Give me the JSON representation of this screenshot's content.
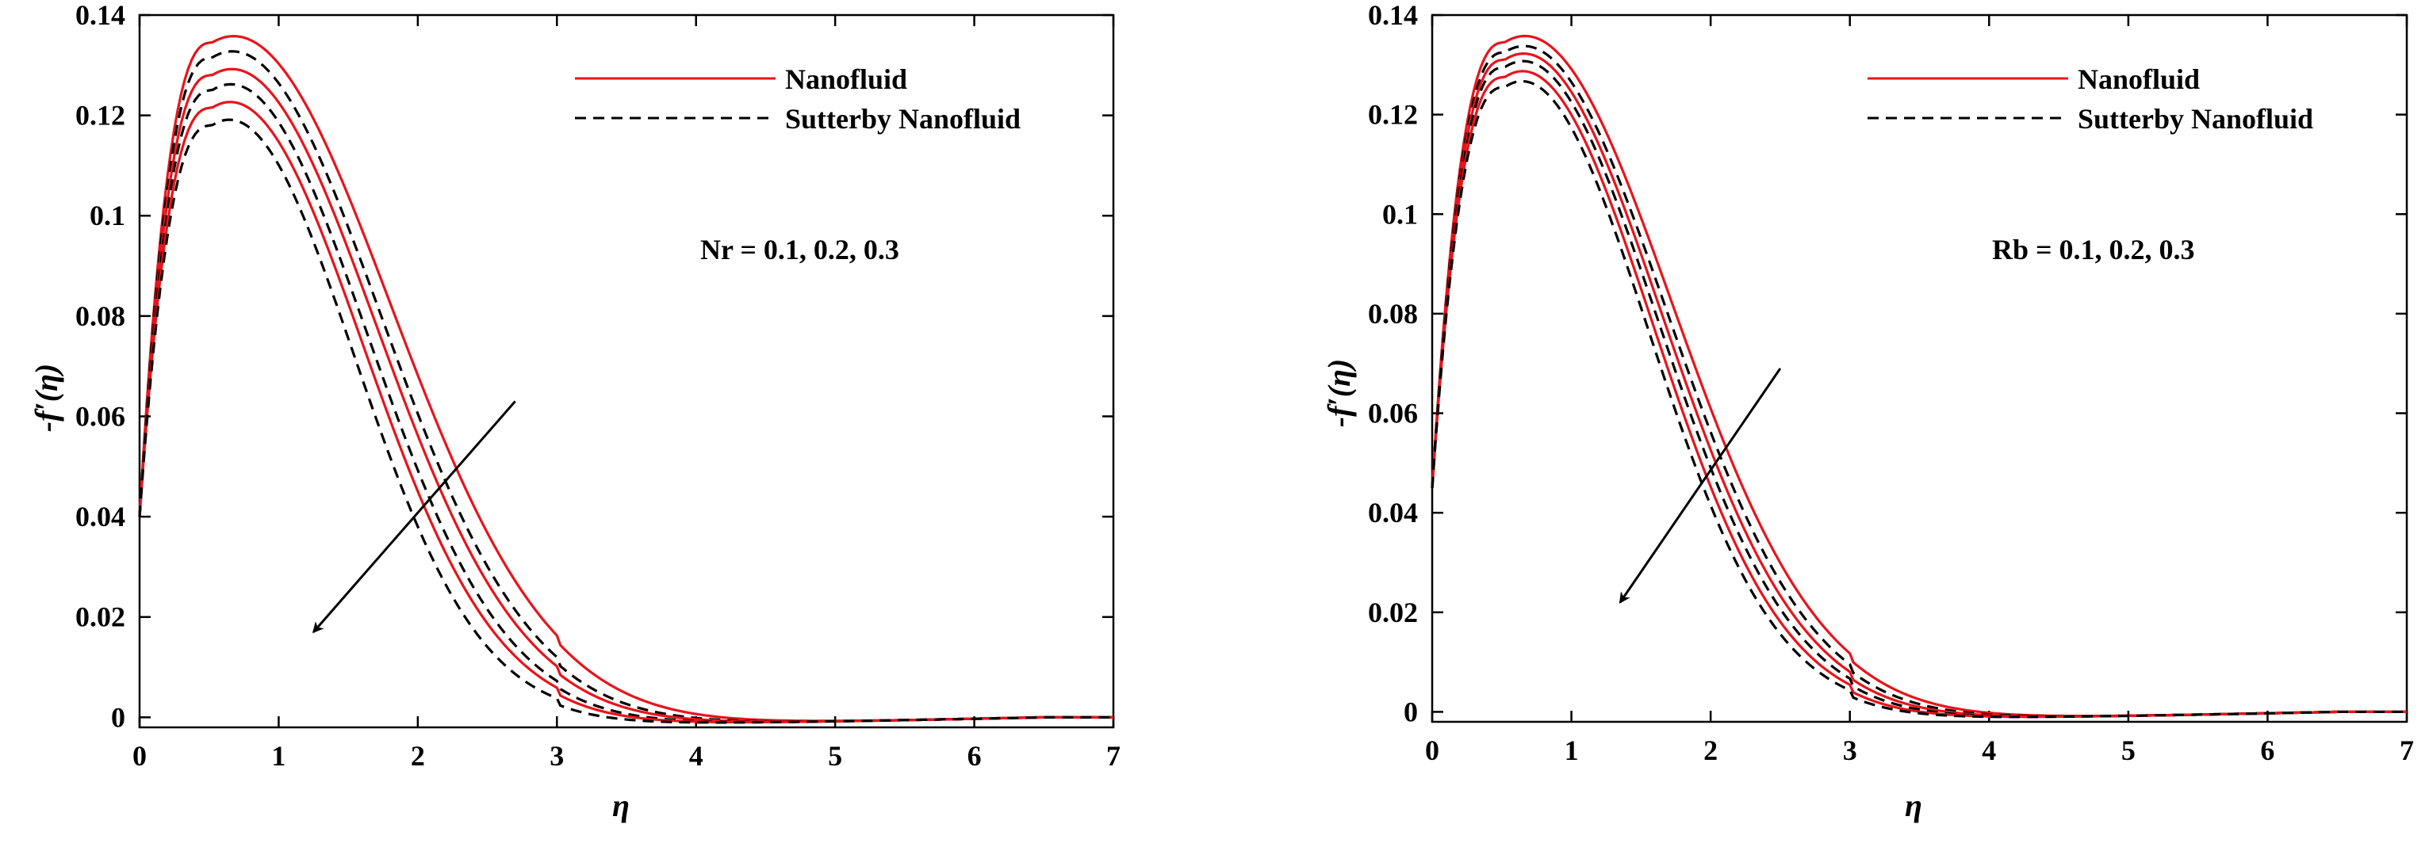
{
  "chart_data": [
    {
      "type": "line",
      "xlabel": "η",
      "ylabel": "-f′(η)",
      "xlim": [
        0,
        7
      ],
      "ylim": [
        -0.002,
        0.14
      ],
      "xticks": [
        "0",
        "1",
        "2",
        "3",
        "4",
        "5",
        "6",
        "7"
      ],
      "yticks": [
        "0",
        "0.02",
        "0.04",
        "0.06",
        "0.08",
        "0.1",
        "0.12",
        "0.14"
      ],
      "legend": [
        {
          "label": "Nanofluid",
          "color": "#e8141b",
          "style": "solid"
        },
        {
          "label": "Sutterby Nanofluid",
          "color": "#000000",
          "style": "dashed"
        }
      ],
      "annotation": "Nr = 0.1, 0.2, 0.3",
      "arrow": {
        "from": [
          2.7,
          0.063
        ],
        "to": [
          1.25,
          0.017
        ]
      },
      "series": [
        {
          "name": "Nanofluid, Nr = 0.1",
          "color": "#e8141b",
          "style": "solid",
          "peak_x": 0.52,
          "peak_y": 0.1345,
          "y0": 0.04,
          "decay": 1.22
        },
        {
          "name": "Sutterby Nanofluid, Nr = 0.1",
          "color": "#000000",
          "style": "dashed",
          "peak_x": 0.52,
          "peak_y": 0.1315,
          "y0": 0.04,
          "decay": 1.15
        },
        {
          "name": "Nanofluid, Nr = 0.2",
          "color": "#e8141b",
          "style": "solid",
          "peak_x": 0.52,
          "peak_y": 0.128,
          "y0": 0.04,
          "decay": 1.12
        },
        {
          "name": "Sutterby Nanofluid, Nr = 0.2",
          "color": "#000000",
          "style": "dashed",
          "peak_x": 0.52,
          "peak_y": 0.125,
          "y0": 0.04,
          "decay": 1.06
        },
        {
          "name": "Nanofluid, Nr = 0.3",
          "color": "#e8141b",
          "style": "solid",
          "peak_x": 0.52,
          "peak_y": 0.1215,
          "y0": 0.04,
          "decay": 1.03
        },
        {
          "name": "Sutterby Nanofluid, Nr = 0.3",
          "color": "#000000",
          "style": "dashed",
          "peak_x": 0.52,
          "peak_y": 0.118,
          "y0": 0.04,
          "decay": 0.97
        }
      ]
    },
    {
      "type": "line",
      "xlabel": "η",
      "ylabel": "-f′(η)",
      "xlim": [
        0,
        7
      ],
      "ylim": [
        -0.002,
        0.14
      ],
      "xticks": [
        "0",
        "1",
        "2",
        "3",
        "4",
        "5",
        "6",
        "7"
      ],
      "yticks": [
        "0",
        "0.02",
        "0.04",
        "0.06",
        "0.08",
        "0.1",
        "0.12",
        "0.14"
      ],
      "legend": [
        {
          "label": "Nanofluid",
          "color": "#e8141b",
          "style": "solid"
        },
        {
          "label": "Sutterby Nanofluid",
          "color": "#000000",
          "style": "dashed"
        }
      ],
      "annotation": "Rb = 0.1, 0.2, 0.3",
      "arrow": {
        "from": [
          2.5,
          0.069
        ],
        "to": [
          1.35,
          0.022
        ]
      },
      "series": [
        {
          "name": "Nanofluid, Rb = 0.1",
          "color": "#e8141b",
          "style": "solid",
          "peak_x": 0.52,
          "peak_y": 0.1345,
          "y0": 0.045,
          "decay": 1.14
        },
        {
          "name": "Sutterby Nanofluid, Rb = 0.1",
          "color": "#000000",
          "style": "dashed",
          "peak_x": 0.52,
          "peak_y": 0.1325,
          "y0": 0.045,
          "decay": 1.1
        },
        {
          "name": "Nanofluid, Rb = 0.2",
          "color": "#e8141b",
          "style": "solid",
          "peak_x": 0.52,
          "peak_y": 0.131,
          "y0": 0.045,
          "decay": 1.07
        },
        {
          "name": "Sutterby Nanofluid, Rb = 0.2",
          "color": "#000000",
          "style": "dashed",
          "peak_x": 0.52,
          "peak_y": 0.1295,
          "y0": 0.045,
          "decay": 1.04
        },
        {
          "name": "Nanofluid, Rb = 0.3",
          "color": "#e8141b",
          "style": "solid",
          "peak_x": 0.52,
          "peak_y": 0.1275,
          "y0": 0.045,
          "decay": 1.01
        },
        {
          "name": "Sutterby Nanofluid, Rb = 0.3",
          "color": "#000000",
          "style": "dashed",
          "peak_x": 0.52,
          "peak_y": 0.1255,
          "y0": 0.045,
          "decay": 0.98
        }
      ]
    }
  ]
}
